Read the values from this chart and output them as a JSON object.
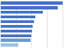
{
  "values": [
    100,
    93,
    68,
    56,
    54,
    52,
    51,
    50,
    49,
    29
  ],
  "bar_colors": [
    "#4472C4",
    "#4472C4",
    "#4472C4",
    "#4472C4",
    "#4472C4",
    "#4472C4",
    "#4472C4",
    "#4472C4",
    "#6B9BD2",
    "#9DC3E6"
  ],
  "background_color": "#FFFFFF",
  "grid_color": "#C0C0C0",
  "xlim": [
    0,
    108
  ],
  "bar_height": 0.62,
  "n_bars": 10
}
